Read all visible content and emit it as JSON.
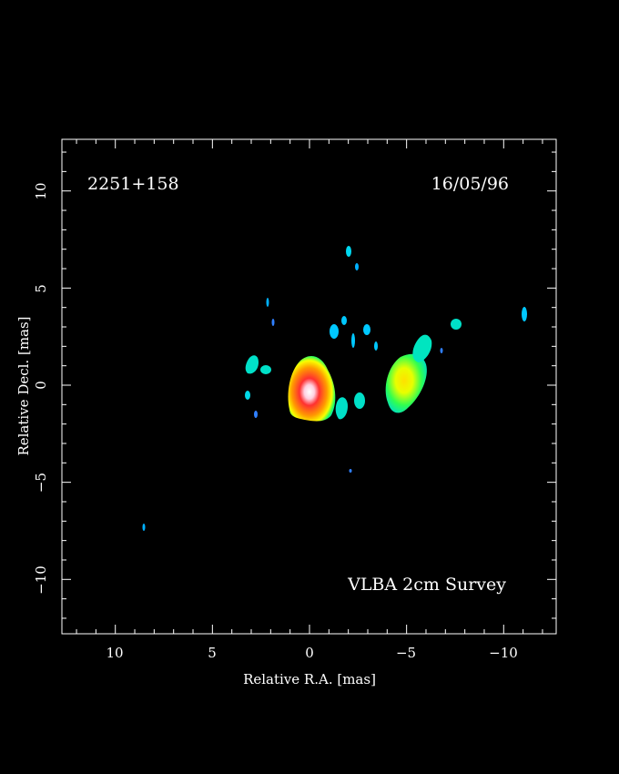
{
  "image": {
    "source_name": "2251+158",
    "date": "16/05/96",
    "survey": "VLBA 2cm Survey",
    "xlabel": "Relative R.A. [mas]",
    "ylabel": "Relative Decl. [mas]",
    "x_ticks": [
      "10",
      "5",
      "0",
      "−5",
      "−10"
    ],
    "y_ticks": [
      "10",
      "5",
      "0",
      "−5",
      "−10"
    ],
    "xlim_mas": [
      12.5,
      -12.5
    ],
    "ylim_mas": [
      -12.5,
      12.5
    ],
    "colors": {
      "background": "#000000",
      "frame": "#ffffff",
      "cyan": "#00e5ff",
      "aqua": "#00ffd0",
      "green": "#20ff60",
      "yellow": "#f0ff00",
      "orange": "#ff9000",
      "red": "#ff2020",
      "core": "#ffffff",
      "blue": "#2060ff"
    }
  }
}
